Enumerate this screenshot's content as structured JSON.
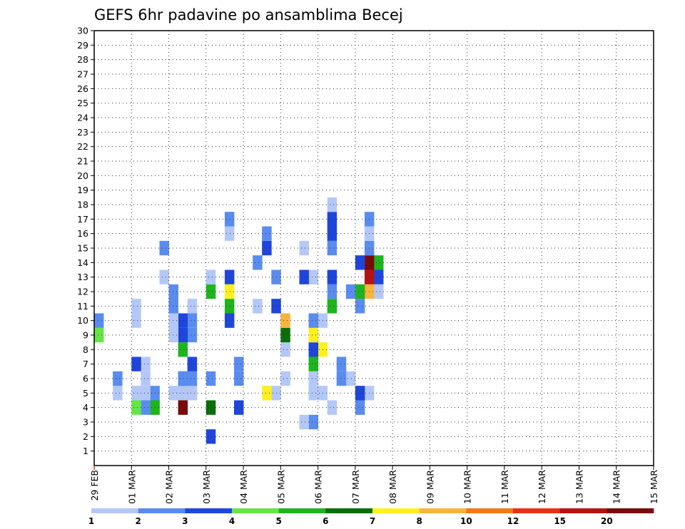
{
  "chart_data": {
    "type": "heatmap",
    "title": "GEFS 6hr padavine po ansamblima Becej",
    "x_tick_labels": [
      "29 FEB",
      "01 MAR",
      "02 MAR",
      "03 MAR",
      "04 MAR",
      "05 MAR",
      "06 MAR",
      "07 MAR",
      "08 MAR",
      "09 MAR",
      "10 MAR",
      "11 MAR",
      "12 MAR",
      "13 MAR",
      "14 MAR",
      "15 MAR"
    ],
    "x_steps_per_day": 4,
    "y_tick_labels": [
      "1",
      "2",
      "3",
      "4",
      "5",
      "6",
      "7",
      "8",
      "9",
      "10",
      "11",
      "12",
      "13",
      "14",
      "15",
      "16",
      "17",
      "18",
      "19",
      "20",
      "21",
      "22",
      "23",
      "24",
      "25",
      "26",
      "27",
      "28",
      "29",
      "30"
    ],
    "ylim": [
      0,
      30
    ],
    "grid": true,
    "colorbar": {
      "labels": [
        "1",
        "2",
        "3",
        "4",
        "5",
        "6",
        "7",
        "8",
        "10",
        "12",
        "15",
        "20"
      ],
      "colors": [
        "#b4c8f8",
        "#5a8cf0",
        "#1e46dc",
        "#64e646",
        "#1eb41e",
        "#0a6e0a",
        "#fff01e",
        "#fab43c",
        "#f57814",
        "#e63214",
        "#b41414",
        "#780a0a"
      ]
    },
    "cells": [
      [
        30,
        12,
        1
      ],
      [
        30,
        13,
        3
      ],
      [
        30,
        14,
        5
      ],
      [
        29,
        5,
        1
      ],
      [
        29,
        12,
        8
      ],
      [
        29,
        13,
        11
      ],
      [
        29,
        14,
        12
      ],
      [
        29,
        15,
        2
      ],
      [
        29,
        16,
        1
      ],
      [
        29,
        17,
        2
      ],
      [
        28,
        4,
        2
      ],
      [
        28,
        5,
        3
      ],
      [
        28,
        11,
        2
      ],
      [
        28,
        12,
        5
      ],
      [
        28,
        14,
        3
      ],
      [
        27,
        6,
        1
      ],
      [
        27,
        12,
        2
      ],
      [
        26,
        6,
        2
      ],
      [
        26,
        7,
        2
      ],
      [
        25,
        4,
        1
      ],
      [
        25,
        11,
        5
      ],
      [
        25,
        12,
        2
      ],
      [
        25,
        13,
        3
      ],
      [
        25,
        15,
        2
      ],
      [
        25,
        16,
        3
      ],
      [
        25,
        17,
        3
      ],
      [
        25,
        18,
        1
      ],
      [
        24,
        5,
        1
      ],
      [
        24,
        10,
        1
      ],
      [
        24,
        8,
        7
      ],
      [
        23,
        3,
        2
      ],
      [
        23,
        5,
        1
      ],
      [
        23,
        6,
        1
      ],
      [
        23,
        7,
        5
      ],
      [
        23,
        8,
        3
      ],
      [
        23,
        9,
        7
      ],
      [
        23,
        10,
        2
      ],
      [
        23,
        13,
        1
      ],
      [
        22,
        3,
        1
      ],
      [
        22,
        13,
        3
      ],
      [
        22,
        15,
        1
      ],
      [
        20,
        6,
        1
      ],
      [
        20,
        8,
        1
      ],
      [
        20,
        9,
        6
      ],
      [
        20,
        10,
        8
      ],
      [
        19,
        5,
        1
      ],
      [
        19,
        11,
        3
      ],
      [
        19,
        13,
        2
      ],
      [
        18,
        5,
        7
      ],
      [
        18,
        15,
        3
      ],
      [
        18,
        16,
        2
      ],
      [
        17,
        11,
        1
      ],
      [
        17,
        14,
        2
      ],
      [
        15,
        4,
        3
      ],
      [
        15,
        6,
        2
      ],
      [
        15,
        7,
        2
      ],
      [
        14,
        10,
        3
      ],
      [
        14,
        12,
        7
      ],
      [
        14,
        13,
        3
      ],
      [
        14,
        11,
        5
      ],
      [
        14,
        12,
        7
      ],
      [
        14,
        16,
        1
      ],
      [
        14,
        17,
        2
      ],
      [
        12,
        2,
        3
      ],
      [
        12,
        4,
        6
      ],
      [
        12,
        6,
        2
      ],
      [
        12,
        12,
        5
      ],
      [
        12,
        13,
        1
      ],
      [
        10,
        5,
        10
      ],
      [
        10,
        6,
        1
      ],
      [
        10,
        7,
        1
      ],
      [
        10,
        5,
        1
      ],
      [
        10,
        6,
        2
      ],
      [
        10,
        7,
        3
      ],
      [
        10,
        9,
        2
      ],
      [
        10,
        10,
        2
      ],
      [
        10,
        11,
        1
      ],
      [
        9,
        4,
        12
      ],
      [
        9,
        5,
        3
      ],
      [
        9,
        5,
        1
      ],
      [
        9,
        6,
        2
      ],
      [
        9,
        6,
        2
      ],
      [
        9,
        8,
        5
      ],
      [
        9,
        10,
        1
      ],
      [
        9,
        9,
        3
      ],
      [
        9,
        10,
        3
      ],
      [
        8,
        5,
        1
      ],
      [
        8,
        9,
        1
      ],
      [
        8,
        10,
        1
      ],
      [
        8,
        11,
        2
      ],
      [
        8,
        12,
        2
      ],
      [
        8,
        10,
        1
      ],
      [
        8,
        11,
        5
      ],
      [
        8,
        11,
        2
      ],
      [
        7,
        13,
        1
      ],
      [
        7,
        15,
        2
      ],
      [
        6,
        4,
        5
      ],
      [
        6,
        5,
        2
      ],
      [
        5,
        4,
        2
      ],
      [
        5,
        5,
        1
      ],
      [
        5,
        6,
        1
      ],
      [
        5,
        7,
        1
      ],
      [
        4,
        4,
        4
      ],
      [
        4,
        5,
        1
      ],
      [
        4,
        7,
        3
      ],
      [
        4,
        10,
        1
      ],
      [
        4,
        11,
        1
      ],
      [
        2,
        5,
        1
      ],
      [
        2,
        6,
        2
      ],
      [
        0,
        9,
        4
      ],
      [
        0,
        10,
        2
      ]
    ]
  }
}
